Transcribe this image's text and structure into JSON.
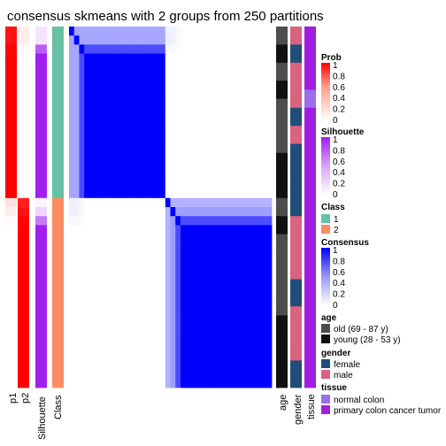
{
  "chart_data": {
    "type": "heatmap",
    "title": "consensus skmeans with 2 groups from 250 partitions",
    "row_annotation_labels": [
      "p1",
      "p2",
      "Silhouette",
      "Class"
    ],
    "column_annotation_labels": [
      "age",
      "gender",
      "tissue"
    ],
    "n_samples": 40,
    "groups": [
      {
        "class": "1",
        "n": 19
      },
      {
        "class": "2",
        "n": 21
      }
    ],
    "p1": [
      0.93,
      0.93,
      0.98,
      1,
      1,
      1,
      1,
      1,
      1,
      1,
      1,
      1,
      1,
      1,
      1,
      1,
      1,
      1,
      1,
      0.12,
      0.07,
      0.02,
      0,
      0,
      0,
      0,
      0,
      0,
      0,
      0,
      0,
      0,
      0,
      0,
      0,
      0,
      0,
      0,
      0,
      0
    ],
    "p2": [
      0.07,
      0.07,
      0.02,
      0,
      0,
      0,
      0,
      0,
      0,
      0,
      0,
      0,
      0,
      0,
      0,
      0,
      0,
      0,
      0,
      0.88,
      0.93,
      0.98,
      1,
      1,
      1,
      1,
      1,
      1,
      1,
      1,
      1,
      1,
      1,
      1,
      1,
      1,
      1,
      1,
      1,
      1
    ],
    "silhouette": [
      0.12,
      0.12,
      0.72,
      1,
      1,
      1,
      1,
      1,
      1,
      1,
      1,
      1,
      1,
      1,
      1,
      1,
      1,
      1,
      1,
      0.05,
      0.18,
      0.6,
      1,
      1,
      1,
      1,
      1,
      1,
      1,
      1,
      1,
      1,
      1,
      1,
      1,
      1,
      1,
      1,
      1,
      1
    ],
    "class": [
      "1",
      "1",
      "1",
      "1",
      "1",
      "1",
      "1",
      "1",
      "1",
      "1",
      "1",
      "1",
      "1",
      "1",
      "1",
      "1",
      "1",
      "1",
      "1",
      "2",
      "2",
      "2",
      "2",
      "2",
      "2",
      "2",
      "2",
      "2",
      "2",
      "2",
      "2",
      "2",
      "2",
      "2",
      "2",
      "2",
      "2",
      "2",
      "2",
      "2"
    ],
    "consensus_note": "block-diagonal consensus matrix; within-group ~1, between-group ~0",
    "weak_sample_similarity": [
      0.35,
      0.35,
      0.7,
      1,
      1,
      1,
      1,
      1,
      1,
      1,
      1,
      1,
      1,
      1,
      1,
      1,
      1,
      1,
      1,
      0.3,
      0.38,
      0.7,
      1,
      1,
      1,
      1,
      1,
      1,
      1,
      1,
      1,
      1,
      1,
      1,
      1,
      1,
      1,
      1,
      1,
      1
    ],
    "age": [
      "old",
      "old",
      "young",
      "young",
      "old",
      "old",
      "young",
      "young",
      "old",
      "old",
      "old",
      "old",
      "old",
      "old",
      "young",
      "young",
      "young",
      "young",
      "young",
      "old",
      "old",
      "young",
      "young",
      "old",
      "old",
      "old",
      "old",
      "old",
      "old",
      "old",
      "old",
      "old",
      "young",
      "young",
      "young",
      "young",
      "young",
      "young",
      "young",
      "young"
    ],
    "gender": [
      "male",
      "male",
      "female",
      "female",
      "male",
      "male",
      "male",
      "male",
      "male",
      "female",
      "female",
      "male",
      "male",
      "female",
      "female",
      "female",
      "female",
      "female",
      "female",
      "female",
      "female",
      "male",
      "male",
      "male",
      "male",
      "male",
      "male",
      "male",
      "female",
      "female",
      "female",
      "male",
      "male",
      "male",
      "male",
      "male",
      "male",
      "female",
      "female",
      "female"
    ],
    "tissue": [
      "primary",
      "primary",
      "primary",
      "primary",
      "primary",
      "primary",
      "primary",
      "normal",
      "normal",
      "primary",
      "primary",
      "primary",
      "primary",
      "primary",
      "primary",
      "primary",
      "primary",
      "primary",
      "primary",
      "primary",
      "primary",
      "primary",
      "primary",
      "primary",
      "primary",
      "primary",
      "primary",
      "primary",
      "primary",
      "primary",
      "primary",
      "primary",
      "primary",
      "primary",
      "primary",
      "primary",
      "primary",
      "primary",
      "primary",
      "primary"
    ]
  },
  "legend": {
    "prob": {
      "title": "Prob",
      "ticks": [
        "1",
        "0.8",
        "0.6",
        "0.4",
        "0.2",
        "0"
      ],
      "colors": [
        "#ff0000",
        "#ffffff"
      ]
    },
    "silhouette": {
      "title": "Silhouette",
      "ticks": [
        "1",
        "0.8",
        "0.6",
        "0.4",
        "0.2",
        "0"
      ],
      "colors": [
        "#a020f0",
        "#ffffff"
      ]
    },
    "class": {
      "title": "Class",
      "items": [
        {
          "label": "1",
          "color": "#66c2a5"
        },
        {
          "label": "2",
          "color": "#fc8d62"
        }
      ]
    },
    "consensus": {
      "title": "Consensus",
      "ticks": [
        "1",
        "0.8",
        "0.6",
        "0.4",
        "0.2",
        "0"
      ],
      "colors": [
        "#0000ff",
        "#ffffff"
      ]
    },
    "age": {
      "title": "age",
      "items": [
        {
          "label": "old (69 - 87 y)",
          "color": "#4d4d4d"
        },
        {
          "label": "young (28 - 53 y)",
          "color": "#111111"
        }
      ]
    },
    "gender": {
      "title": "gender",
      "items": [
        {
          "label": "female",
          "color": "#1f4e79"
        },
        {
          "label": "male",
          "color": "#d9647f"
        }
      ]
    },
    "tissue": {
      "title": "tissue",
      "items": [
        {
          "label": "normal colon",
          "color": "#9b6fe8"
        },
        {
          "label": "primary colon cancer tumor",
          "color": "#a11ee0"
        }
      ]
    }
  }
}
